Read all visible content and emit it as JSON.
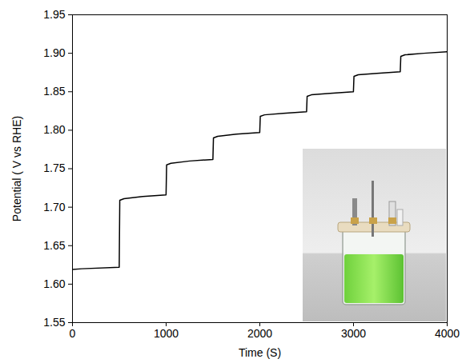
{
  "chart_data": {
    "type": "line",
    "x_label": "Time (S)",
    "y_label": "Potential ( V vs RHE)",
    "x": [
      0,
      100,
      499,
      505,
      550,
      750,
      999,
      1005,
      1050,
      1250,
      1499,
      1505,
      1550,
      1750,
      1999,
      2005,
      2050,
      2250,
      2499,
      2505,
      2550,
      2750,
      2999,
      3005,
      3050,
      3250,
      3499,
      3505,
      3550,
      3750,
      4000
    ],
    "values": [
      1.619,
      1.62,
      1.622,
      1.709,
      1.711,
      1.714,
      1.716,
      1.755,
      1.757,
      1.76,
      1.762,
      1.79,
      1.792,
      1.795,
      1.797,
      1.818,
      1.82,
      1.822,
      1.824,
      1.844,
      1.846,
      1.848,
      1.85,
      1.87,
      1.872,
      1.874,
      1.876,
      1.896,
      1.898,
      1.9,
      1.902
    ],
    "color": "#000000",
    "xlim": [
      0,
      4000
    ],
    "xticks": [
      0,
      1000,
      2000,
      3000,
      4000
    ],
    "ylim": [
      1.55,
      1.95
    ],
    "yticks": [
      1.55,
      {
        "value": 1.6,
        "label": "1.60"
      },
      1.65,
      {
        "value": 1.7,
        "label": "1.70"
      },
      1.75,
      {
        "value": 1.8,
        "label": "1.80"
      },
      1.85,
      {
        "value": 1.9,
        "label": "1.90"
      },
      1.95
    ],
    "grid": false
  }
}
